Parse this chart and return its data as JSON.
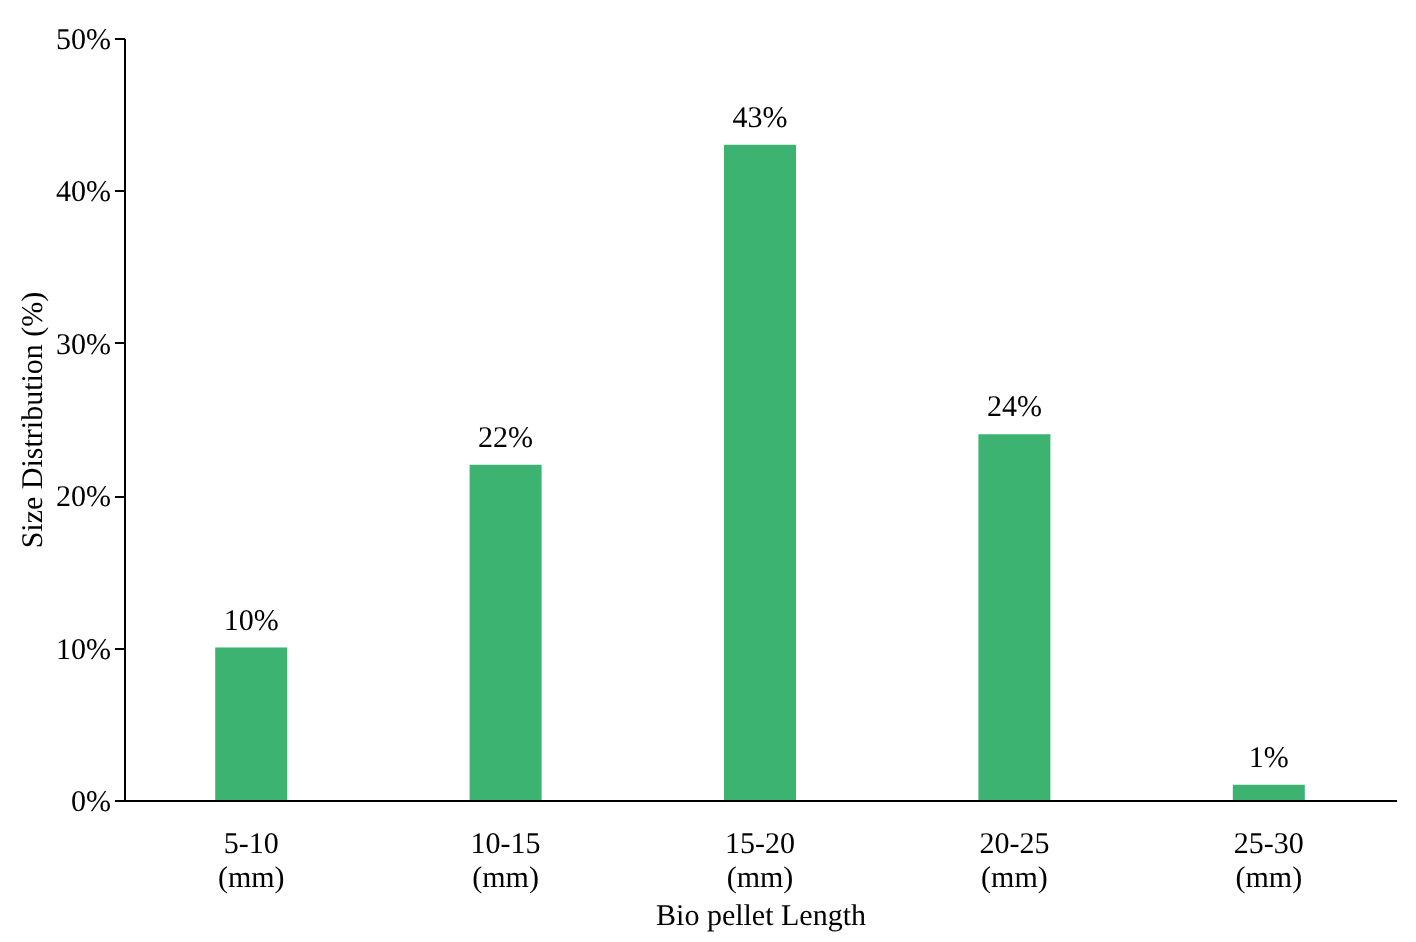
{
  "chart_data": {
    "type": "bar",
    "xlabel": "Bio pellet Length",
    "ylabel": "Size Distribution (%)",
    "categories": [
      "5-10 (mm)",
      "10-15 (mm)",
      "15-20 (mm)",
      "20-25 (mm)",
      "25-30 (mm)"
    ],
    "values": [
      10,
      22,
      43,
      24,
      1
    ],
    "value_labels": [
      "10%",
      "22%",
      "43%",
      "24%",
      "1%"
    ],
    "color": "#3cb371",
    "ylim": [
      0,
      50
    ],
    "yticks": [
      {
        "value": 0,
        "label": "0%"
      },
      {
        "value": 10,
        "label": "10%"
      },
      {
        "value": 20,
        "label": "20%"
      },
      {
        "value": 30,
        "label": "30%"
      },
      {
        "value": 40,
        "label": "40%"
      },
      {
        "value": 50,
        "label": "50%"
      }
    ],
    "grid": false
  }
}
